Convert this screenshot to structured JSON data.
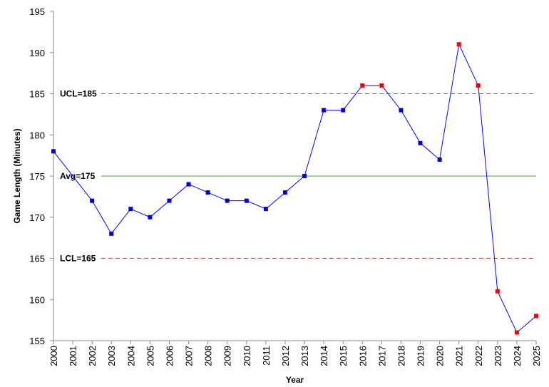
{
  "chart_data": {
    "type": "line",
    "title": "",
    "xlabel": "Year",
    "ylabel": "Game Length (Minutes)",
    "ylim": [
      155,
      195
    ],
    "yticks": [
      155,
      160,
      165,
      170,
      175,
      180,
      185,
      190,
      195
    ],
    "grid": false,
    "legend": "none",
    "x": [
      "2000",
      "2001",
      "2002",
      "2003",
      "2004",
      "2005",
      "2006",
      "2007",
      "2008",
      "2009",
      "2010",
      "2011",
      "2012",
      "2013",
      "2014",
      "2015",
      "2016",
      "2017",
      "2018",
      "2019",
      "2020",
      "2021",
      "2022",
      "2023",
      "2024",
      "2025"
    ],
    "series": [
      {
        "name": "",
        "values": [
          178,
          null,
          172,
          168,
          171,
          170,
          172,
          174,
          173,
          172,
          172,
          171,
          173,
          175,
          183,
          183,
          186,
          186,
          183,
          179,
          177,
          191,
          186,
          161,
          156,
          158
        ],
        "out_of_control": [
          false,
          false,
          false,
          false,
          false,
          false,
          false,
          false,
          false,
          false,
          false,
          false,
          false,
          false,
          false,
          false,
          true,
          true,
          false,
          false,
          false,
          true,
          true,
          true,
          true,
          true
        ]
      }
    ],
    "reference_lines": [
      {
        "key": "ucl",
        "label": "UCL=185",
        "value": 185,
        "style": "dashed",
        "color": "#c0504d"
      },
      {
        "key": "avg",
        "label": "Avg=175",
        "value": 175,
        "style": "solid",
        "color": "#4e9a3a"
      },
      {
        "key": "lcl",
        "label": "LCL=165",
        "value": 165,
        "style": "dashed",
        "color": "#c0504d"
      }
    ]
  },
  "colors": {
    "line": "#0000ff",
    "point_in_control": "#0000cc",
    "point_out_of_control": "#ff0000",
    "axis": "#898989"
  }
}
